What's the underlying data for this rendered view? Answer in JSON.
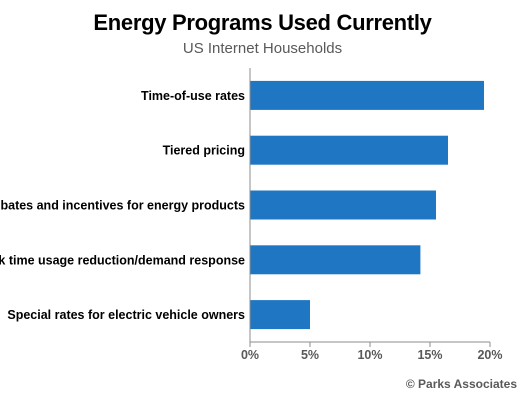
{
  "chart_data": {
    "type": "bar",
    "orientation": "horizontal",
    "title": "Energy Programs Used Currently",
    "subtitle": "US Internet Households",
    "categories": [
      "Time-of-use rates",
      "Tiered pricing",
      "Rebates and incentives for energy products",
      "Peak time usage reduction/demand response",
      "Special rates for electric vehicle owners"
    ],
    "values": [
      19.5,
      16.5,
      15.5,
      14.2,
      5.0
    ],
    "unit": "%",
    "xlim": [
      0,
      20
    ],
    "ticks": [
      0,
      5,
      10,
      15,
      20
    ],
    "tick_labels": [
      "0%",
      "5%",
      "10%",
      "15%",
      "20%"
    ],
    "grid": false,
    "bar_color": "#1f77c4"
  },
  "footer": {
    "credit": "© Parks Associates"
  }
}
